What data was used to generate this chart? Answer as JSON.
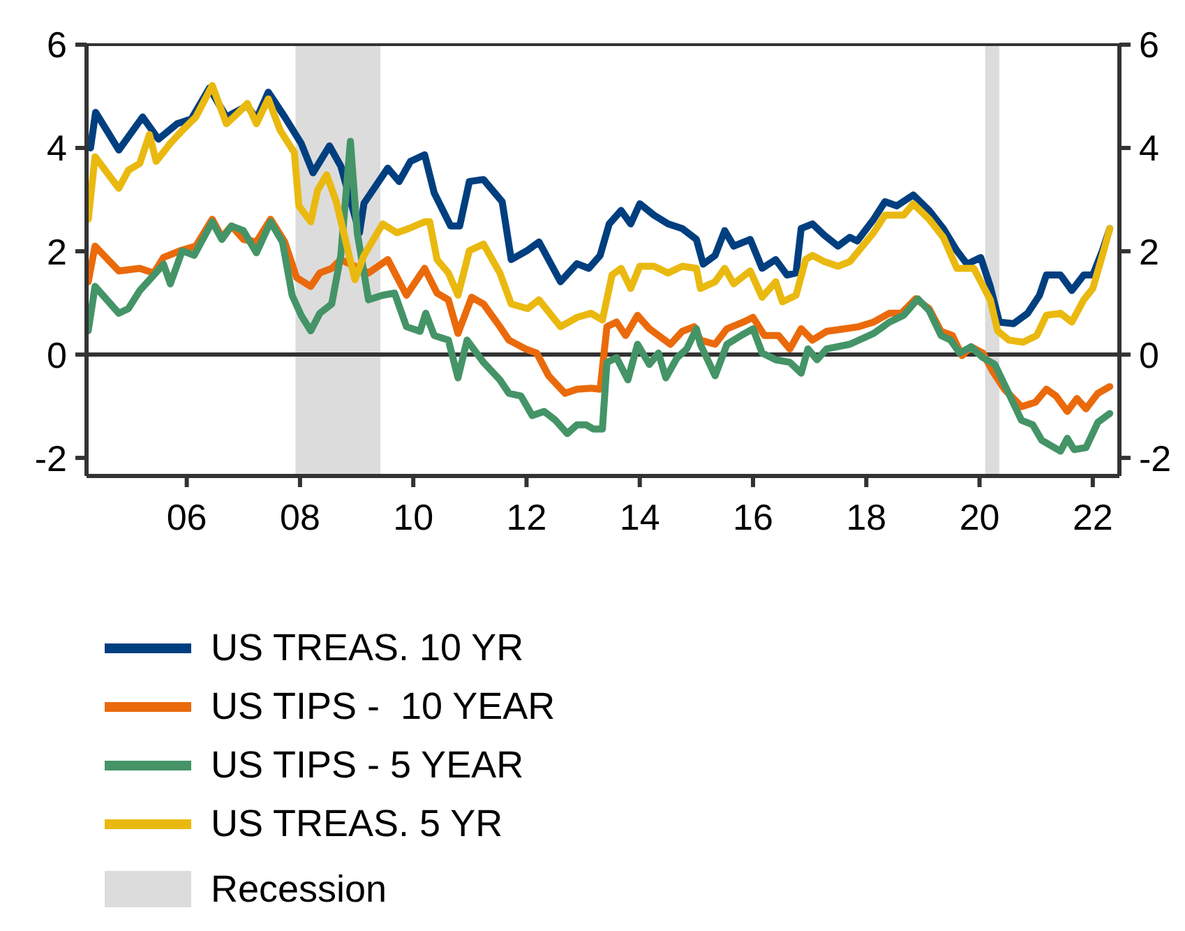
{
  "chart_data": {
    "type": "line",
    "legend": "bottom",
    "xlim": [
      2004.23,
      2022.47
    ],
    "xticks": [
      {
        "value": 2006,
        "label": "06"
      },
      {
        "value": 2008,
        "label": "08"
      },
      {
        "value": 2010,
        "label": "10"
      },
      {
        "value": 2012,
        "label": "12"
      },
      {
        "value": 2014,
        "label": "14"
      },
      {
        "value": 2016,
        "label": "16"
      },
      {
        "value": 2018,
        "label": "18"
      },
      {
        "value": 2020,
        "label": "20"
      },
      {
        "value": 2022,
        "label": "22"
      }
    ],
    "ylim": [
      -2.35,
      6
    ],
    "yticks": [
      -2,
      0,
      2,
      4,
      6
    ],
    "y2lim": [
      -2.35,
      6
    ],
    "y2ticks": [
      -2,
      0,
      2,
      4,
      6
    ],
    "ref_lines": [
      {
        "axis": "y",
        "value": 0,
        "color": "#333333"
      }
    ],
    "bands": [
      {
        "axis": "x",
        "from": 2007.92,
        "to": 2009.42,
        "label": "Recession",
        "color": "#dcdcdc"
      },
      {
        "axis": "x",
        "from": 2020.1,
        "to": 2020.35,
        "color": "#dcdcdc"
      }
    ],
    "series": [
      {
        "name": "US TREAS. 10 YR",
        "color": "#003f7f",
        "x": [
          2004.3,
          2004.39,
          2004.8,
          2005.22,
          2005.5,
          2005.83,
          2006.08,
          2006.4,
          2006.7,
          2007.07,
          2007.23,
          2007.44,
          2007.73,
          2008.02,
          2008.23,
          2008.52,
          2008.72,
          2009.05,
          2009.13,
          2009.55,
          2009.75,
          2009.95,
          2010.2,
          2010.37,
          2010.66,
          2010.82,
          2010.99,
          2011.24,
          2011.57,
          2011.73,
          2012.02,
          2012.22,
          2012.6,
          2012.89,
          2013.1,
          2013.3,
          2013.46,
          2013.67,
          2013.84,
          2014.0,
          2014.25,
          2014.5,
          2014.75,
          2015.0,
          2015.12,
          2015.33,
          2015.5,
          2015.66,
          2015.95,
          2016.16,
          2016.4,
          2016.6,
          2016.76,
          2016.85,
          2017.05,
          2017.26,
          2017.5,
          2017.71,
          2017.84,
          2018.13,
          2018.33,
          2018.54,
          2018.83,
          2019.11,
          2019.36,
          2019.6,
          2019.78,
          2020.02,
          2020.19,
          2020.35,
          2020.6,
          2020.85,
          2021.06,
          2021.18,
          2021.43,
          2021.63,
          2021.84,
          2022.0,
          2022.17,
          2022.3
        ],
        "values": [
          4.0,
          4.69,
          3.96,
          4.6,
          4.17,
          4.47,
          4.56,
          5.16,
          4.6,
          4.82,
          4.56,
          5.08,
          4.6,
          4.09,
          3.52,
          4.04,
          3.65,
          2.36,
          2.93,
          3.61,
          3.35,
          3.74,
          3.87,
          3.13,
          2.49,
          2.49,
          3.35,
          3.39,
          2.96,
          1.84,
          2.02,
          2.18,
          1.41,
          1.76,
          1.67,
          1.92,
          2.53,
          2.79,
          2.53,
          2.92,
          2.7,
          2.53,
          2.44,
          2.23,
          1.75,
          1.92,
          2.4,
          2.1,
          2.23,
          1.67,
          1.84,
          1.54,
          1.58,
          2.44,
          2.53,
          2.31,
          2.1,
          2.27,
          2.2,
          2.62,
          2.96,
          2.88,
          3.09,
          2.79,
          2.44,
          2.01,
          1.75,
          1.88,
          1.32,
          0.63,
          0.6,
          0.8,
          1.15,
          1.54,
          1.54,
          1.24,
          1.54,
          1.54,
          2.01,
          2.44
        ]
      },
      {
        "name": "US TIPS -  10 YEAR",
        "color": "#ea6a0b",
        "x": [
          2004.26,
          2004.38,
          2004.8,
          2005.17,
          2005.42,
          2005.59,
          2005.88,
          2006.16,
          2006.45,
          2006.62,
          2006.79,
          2007.0,
          2007.23,
          2007.48,
          2007.73,
          2007.94,
          2008.19,
          2008.35,
          2008.56,
          2008.72,
          2009.21,
          2009.55,
          2009.88,
          2010.04,
          2010.2,
          2010.42,
          2010.62,
          2010.79,
          2011.03,
          2011.24,
          2011.53,
          2011.69,
          2011.98,
          2012.18,
          2012.39,
          2012.68,
          2012.89,
          2013.14,
          2013.3,
          2013.42,
          2013.59,
          2013.75,
          2013.96,
          2014.17,
          2014.54,
          2014.75,
          2014.96,
          2015.07,
          2015.33,
          2015.54,
          2015.83,
          2016.0,
          2016.2,
          2016.45,
          2016.65,
          2016.85,
          2017.05,
          2017.3,
          2017.63,
          2017.87,
          2018.13,
          2018.41,
          2018.62,
          2018.87,
          2019.11,
          2019.32,
          2019.52,
          2019.69,
          2019.85,
          2020.06,
          2020.23,
          2020.44,
          2020.74,
          2020.99,
          2021.18,
          2021.35,
          2021.55,
          2021.72,
          2021.88,
          2022.09,
          2022.3
        ],
        "values": [
          1.41,
          2.1,
          1.62,
          1.67,
          1.58,
          1.88,
          2.01,
          2.1,
          2.62,
          2.27,
          2.49,
          2.23,
          2.18,
          2.62,
          2.18,
          1.49,
          1.32,
          1.58,
          1.67,
          1.84,
          1.58,
          1.84,
          1.15,
          1.41,
          1.67,
          1.19,
          1.06,
          0.41,
          1.11,
          0.98,
          0.54,
          0.28,
          0.11,
          0.03,
          -0.41,
          -0.75,
          -0.67,
          -0.65,
          -0.67,
          0.54,
          0.63,
          0.37,
          0.76,
          0.5,
          0.2,
          0.45,
          0.54,
          0.28,
          0.2,
          0.5,
          0.63,
          0.72,
          0.37,
          0.37,
          0.11,
          0.5,
          0.28,
          0.45,
          0.5,
          0.54,
          0.63,
          0.8,
          0.8,
          1.08,
          0.89,
          0.45,
          0.37,
          -0.02,
          0.15,
          0.03,
          -0.32,
          -0.67,
          -1.01,
          -0.92,
          -0.67,
          -0.8,
          -1.1,
          -0.85,
          -1.05,
          -0.75,
          -0.62
        ]
      },
      {
        "name": "US TIPS - 5 YEAR",
        "color": "#449467",
        "x": [
          2004.26,
          2004.38,
          2004.8,
          2004.97,
          2005.17,
          2005.59,
          2005.71,
          2005.92,
          2006.13,
          2006.45,
          2006.62,
          2006.79,
          2007.0,
          2007.23,
          2007.48,
          2007.69,
          2007.86,
          2008.02,
          2008.19,
          2008.35,
          2008.56,
          2008.72,
          2008.89,
          2009.01,
          2009.21,
          2009.46,
          2009.67,
          2009.88,
          2010.12,
          2010.22,
          2010.37,
          2010.62,
          2010.79,
          2010.95,
          2011.24,
          2011.53,
          2011.69,
          2011.9,
          2012.1,
          2012.31,
          2012.51,
          2012.72,
          2012.89,
          2013.05,
          2013.18,
          2013.34,
          2013.42,
          2013.59,
          2013.79,
          2013.96,
          2014.17,
          2014.33,
          2014.46,
          2014.66,
          2014.83,
          2015.0,
          2015.07,
          2015.33,
          2015.54,
          2015.79,
          2016.0,
          2016.16,
          2016.4,
          2016.65,
          2016.85,
          2016.97,
          2017.13,
          2017.3,
          2017.71,
          2018.13,
          2018.41,
          2018.66,
          2018.91,
          2019.11,
          2019.32,
          2019.49,
          2019.65,
          2019.85,
          2020.06,
          2020.27,
          2020.48,
          2020.74,
          2020.94,
          2021.1,
          2021.43,
          2021.55,
          2021.67,
          2021.88,
          2022.09,
          2022.3
        ],
        "values": [
          0.46,
          1.32,
          0.8,
          0.89,
          1.24,
          1.75,
          1.37,
          2.01,
          1.92,
          2.57,
          2.23,
          2.49,
          2.4,
          1.97,
          2.57,
          2.18,
          1.15,
          0.76,
          0.46,
          0.8,
          0.98,
          1.92,
          4.13,
          2.36,
          1.06,
          1.15,
          1.19,
          0.54,
          0.45,
          0.8,
          0.37,
          0.28,
          -0.45,
          0.28,
          -0.15,
          -0.49,
          -0.75,
          -0.8,
          -1.18,
          -1.1,
          -1.27,
          -1.53,
          -1.36,
          -1.36,
          -1.44,
          -1.44,
          -0.15,
          -0.06,
          -0.49,
          0.2,
          -0.19,
          0.03,
          -0.45,
          -0.06,
          0.11,
          0.5,
          0.2,
          -0.41,
          0.2,
          0.37,
          0.5,
          0.03,
          -0.1,
          -0.15,
          -0.36,
          0.11,
          -0.1,
          0.11,
          0.2,
          0.41,
          0.63,
          0.76,
          1.08,
          0.85,
          0.37,
          0.28,
          0.03,
          0.15,
          -0.06,
          -0.19,
          -0.67,
          -1.27,
          -1.36,
          -1.66,
          -1.87,
          -1.62,
          -1.84,
          -1.8,
          -1.31,
          -1.14
        ]
      },
      {
        "name": "US TREAS. 5 YR",
        "color": "#eab910",
        "x": [
          2004.26,
          2004.38,
          2004.8,
          2004.97,
          2005.17,
          2005.34,
          2005.46,
          2005.71,
          2005.92,
          2006.16,
          2006.45,
          2006.7,
          2006.87,
          2007.07,
          2007.23,
          2007.44,
          2007.65,
          2007.9,
          2007.98,
          2008.19,
          2008.31,
          2008.47,
          2008.64,
          2008.97,
          2009.13,
          2009.46,
          2009.71,
          2009.92,
          2010.2,
          2010.29,
          2010.42,
          2010.62,
          2010.79,
          2010.99,
          2011.24,
          2011.53,
          2011.73,
          2012.02,
          2012.22,
          2012.6,
          2012.89,
          2013.14,
          2013.34,
          2013.51,
          2013.67,
          2013.84,
          2014.0,
          2014.25,
          2014.5,
          2014.75,
          2015.0,
          2015.07,
          2015.33,
          2015.5,
          2015.66,
          2015.95,
          2016.16,
          2016.4,
          2016.52,
          2016.76,
          2016.93,
          2017.05,
          2017.26,
          2017.5,
          2017.71,
          2018.13,
          2018.33,
          2018.66,
          2018.83,
          2019.11,
          2019.36,
          2019.6,
          2019.9,
          2020.19,
          2020.32,
          2020.52,
          2020.77,
          2021.01,
          2021.18,
          2021.43,
          2021.63,
          2021.84,
          2022.0,
          2022.17,
          2022.3
        ],
        "values": [
          2.62,
          3.83,
          3.22,
          3.57,
          3.7,
          4.26,
          3.74,
          4.09,
          4.34,
          4.6,
          5.21,
          4.47,
          4.64,
          4.86,
          4.47,
          4.95,
          4.34,
          3.91,
          2.88,
          2.57,
          3.18,
          3.48,
          2.96,
          1.45,
          1.92,
          2.53,
          2.36,
          2.44,
          2.57,
          2.57,
          1.84,
          1.58,
          1.15,
          2.01,
          2.14,
          1.58,
          0.98,
          0.89,
          1.06,
          0.54,
          0.72,
          0.8,
          0.67,
          1.54,
          1.67,
          1.28,
          1.71,
          1.71,
          1.58,
          1.71,
          1.67,
          1.28,
          1.41,
          1.67,
          1.37,
          1.62,
          1.11,
          1.41,
          1.02,
          1.15,
          1.84,
          1.92,
          1.8,
          1.71,
          1.8,
          2.36,
          2.7,
          2.7,
          2.92,
          2.62,
          2.27,
          1.67,
          1.67,
          1.06,
          0.46,
          0.28,
          0.24,
          0.37,
          0.76,
          0.8,
          0.63,
          1.06,
          1.28,
          1.92,
          2.44
        ]
      }
    ]
  }
}
